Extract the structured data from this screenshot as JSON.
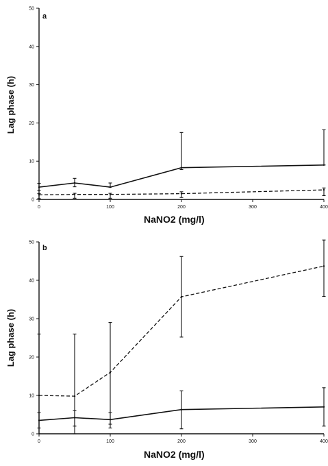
{
  "chart_data": [
    {
      "type": "line",
      "panel_label": "a",
      "xlabel": "NaNO2 (mg/l)",
      "ylabel": "Lag phase (h)",
      "xlim": [
        0,
        400
      ],
      "ylim": [
        0,
        50
      ],
      "x_ticks": [
        0,
        100,
        200,
        300,
        400
      ],
      "y_ticks": [
        0,
        10,
        20,
        30,
        40,
        50
      ],
      "grid": false,
      "series": [
        {
          "style": "solid",
          "x": [
            0,
            50,
            100,
            200,
            400
          ],
          "values": [
            3.2,
            4.3,
            3.2,
            8.3,
            9.0
          ],
          "err_low": [
            2.3,
            3.3,
            3.2,
            7.8,
            9.0
          ],
          "err_high": [
            4.2,
            5.5,
            4.3,
            17.5,
            18.2
          ]
        },
        {
          "style": "dashed",
          "x": [
            0,
            50,
            100,
            200,
            400
          ],
          "values": [
            1.2,
            1.3,
            1.3,
            1.5,
            2.5
          ],
          "err_low": [
            0.2,
            0.3,
            0.3,
            0.5,
            1.0
          ],
          "err_high": [
            1.5,
            1.6,
            1.6,
            2.0,
            3.0
          ]
        }
      ]
    },
    {
      "type": "line",
      "panel_label": "b",
      "xlabel": "NaNO2 (mg/l)",
      "ylabel": "Lag phase (h)",
      "xlim": [
        0,
        400
      ],
      "ylim": [
        0,
        50
      ],
      "x_ticks": [
        0,
        100,
        200,
        300,
        400
      ],
      "y_ticks": [
        0,
        10,
        20,
        30,
        40,
        50
      ],
      "grid": false,
      "series": [
        {
          "style": "solid",
          "x": [
            0,
            50,
            100,
            200,
            400
          ],
          "values": [
            3.5,
            4.2,
            3.7,
            6.3,
            7.0
          ],
          "err_low": [
            1.5,
            2.0,
            1.5,
            1.3,
            2.0
          ],
          "err_high": [
            5.5,
            6.0,
            5.5,
            11.2,
            12.0
          ]
        },
        {
          "style": "dashed",
          "x": [
            0,
            50,
            100,
            200,
            400
          ],
          "values": [
            10.0,
            9.8,
            16.0,
            35.7,
            43.7
          ],
          "err_low": [
            0.0,
            0.0,
            2.5,
            25.2,
            35.8
          ],
          "err_high": [
            26.0,
            26.0,
            29.0,
            46.2,
            50.5
          ]
        }
      ]
    }
  ]
}
